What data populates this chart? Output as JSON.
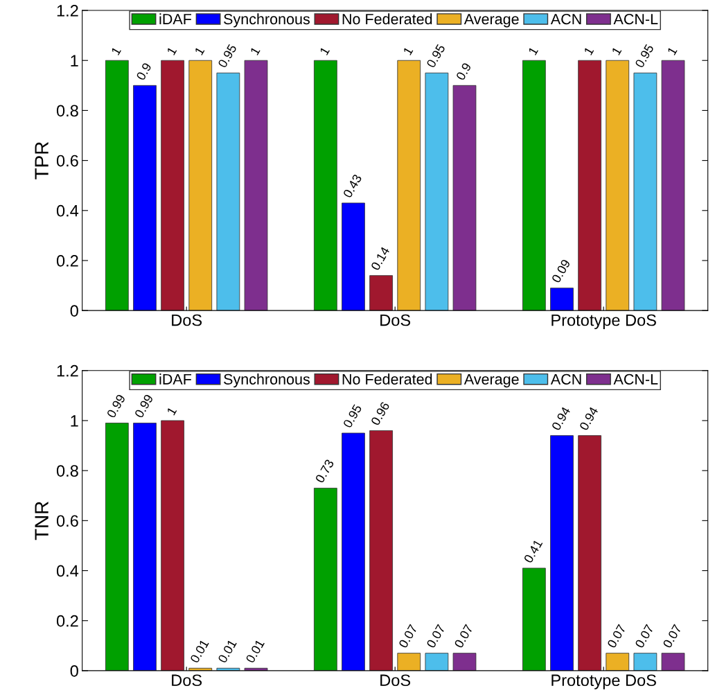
{
  "chart_data": [
    {
      "type": "bar",
      "ylabel": "TPR",
      "categories": [
        "DoS",
        "DoS",
        "Prototype DoS"
      ],
      "ylim": [
        0,
        1.2
      ],
      "yticks": [
        0,
        0.2,
        0.4,
        0.6,
        0.8,
        1,
        1.2
      ],
      "legend": "top",
      "data_labels": true,
      "grid": false,
      "series": [
        {
          "name": "iDAF",
          "color": "#00a000",
          "values": [
            1,
            1,
            1
          ]
        },
        {
          "name": "Synchronous",
          "color": "#0000ff",
          "values": [
            0.9,
            0.43,
            0.09
          ]
        },
        {
          "name": "No Federated",
          "color": "#a0182e",
          "values": [
            1,
            0.14,
            1
          ]
        },
        {
          "name": "Average",
          "color": "#ebb024",
          "values": [
            1,
            1,
            1
          ]
        },
        {
          "name": "ACN",
          "color": "#4dbeeb",
          "values": [
            0.95,
            0.95,
            0.95
          ]
        },
        {
          "name": "ACN-L",
          "color": "#7e2f8e",
          "values": [
            1,
            0.9,
            1
          ]
        }
      ]
    },
    {
      "type": "bar",
      "ylabel": "TNR",
      "categories": [
        "DoS",
        "DoS",
        "Prototype DoS"
      ],
      "ylim": [
        0,
        1.2
      ],
      "yticks": [
        0,
        0.2,
        0.4,
        0.6,
        0.8,
        1,
        1.2
      ],
      "legend": "top",
      "data_labels": true,
      "grid": false,
      "series": [
        {
          "name": "iDAF",
          "color": "#00a000",
          "values": [
            0.99,
            0.73,
            0.41
          ]
        },
        {
          "name": "Synchronous",
          "color": "#0000ff",
          "values": [
            0.99,
            0.95,
            0.94
          ]
        },
        {
          "name": "No Federated",
          "color": "#a0182e",
          "values": [
            1,
            0.96,
            0.94
          ]
        },
        {
          "name": "Average",
          "color": "#ebb024",
          "values": [
            0.01,
            0.07,
            0.07
          ]
        },
        {
          "name": "ACN",
          "color": "#4dbeeb",
          "values": [
            0.01,
            0.07,
            0.07
          ]
        },
        {
          "name": "ACN-L",
          "color": "#7e2f8e",
          "values": [
            0.01,
            0.07,
            0.07
          ]
        }
      ]
    }
  ]
}
